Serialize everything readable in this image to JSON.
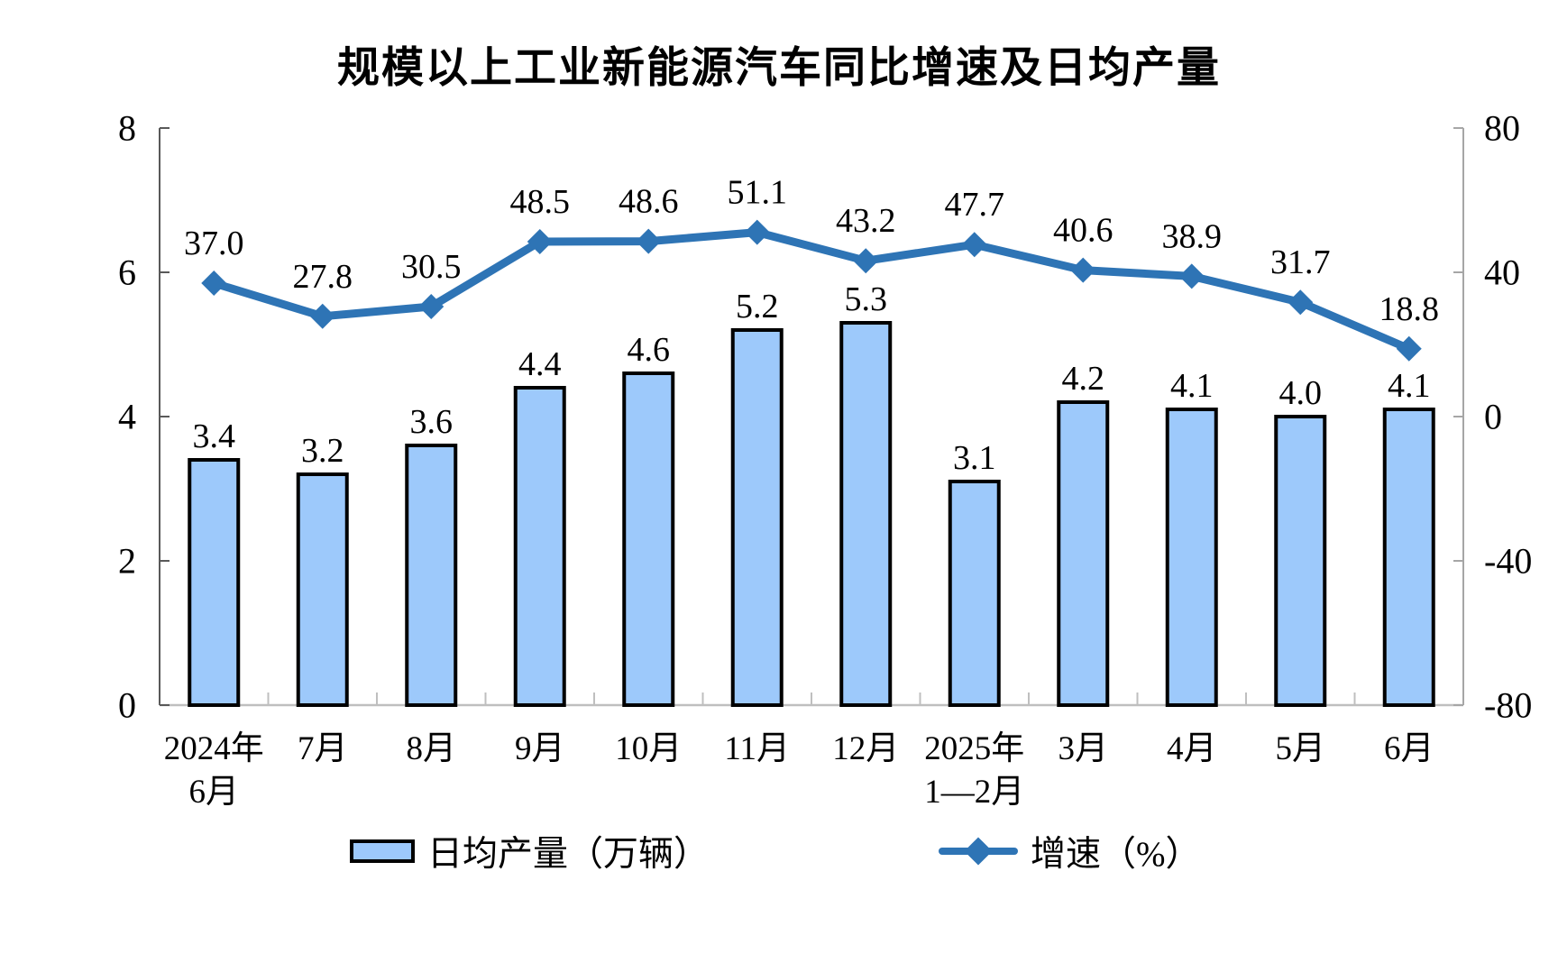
{
  "title": "规模以上工业新能源汽车同比增速及日均产量",
  "legend": {
    "bar_label": "日均产量（万辆）",
    "line_label": "增速（%）"
  },
  "chart_data": {
    "type": "bar+line",
    "title": "规模以上工业新能源汽车同比增速及日均产量",
    "categories": [
      [
        "2024年",
        "6月"
      ],
      [
        "7月"
      ],
      [
        "8月"
      ],
      [
        "9月"
      ],
      [
        "10月"
      ],
      [
        "11月"
      ],
      [
        "12月"
      ],
      [
        "2025年",
        "1—2月"
      ],
      [
        "3月"
      ],
      [
        "4月"
      ],
      [
        "5月"
      ],
      [
        "6月"
      ]
    ],
    "series": [
      {
        "name": "日均产量（万辆）",
        "type": "bar",
        "axis": "left",
        "values": [
          3.4,
          3.2,
          3.6,
          4.4,
          4.6,
          5.2,
          5.3,
          3.1,
          4.2,
          4.1,
          4.0,
          4.1
        ],
        "labels": [
          "3.4",
          "3.2",
          "3.6",
          "4.4",
          "4.6",
          "5.2",
          "5.3",
          "3.1",
          "4.2",
          "4.1",
          "4.0",
          "4.1"
        ]
      },
      {
        "name": "增速（%）",
        "type": "line",
        "axis": "right",
        "values": [
          37.0,
          27.8,
          30.5,
          48.5,
          48.6,
          51.1,
          43.2,
          47.7,
          40.6,
          38.9,
          31.7,
          18.8
        ],
        "labels": [
          "37.0",
          "27.8",
          "30.5",
          "48.5",
          "48.6",
          "51.1",
          "43.2",
          "47.7",
          "40.6",
          "38.9",
          "31.7",
          "18.8"
        ]
      }
    ],
    "left_axis": {
      "min": 0,
      "max": 8,
      "tick_labels": [
        "0",
        "2",
        "4",
        "6",
        "8"
      ]
    },
    "right_axis": {
      "min": -80,
      "max": 80,
      "tick_labels": [
        "-80",
        "-40",
        "0",
        "40",
        "80"
      ]
    },
    "grid": false,
    "legend_position": "bottom",
    "colors": {
      "bar_fill": "#9DC9FB",
      "bar_border": "#000000",
      "line": "#2E74B5",
      "left_axis_line": "#595959",
      "bottom_axis_line": "#BFBFBF",
      "right_axis_line": "#A6A6A6"
    }
  }
}
